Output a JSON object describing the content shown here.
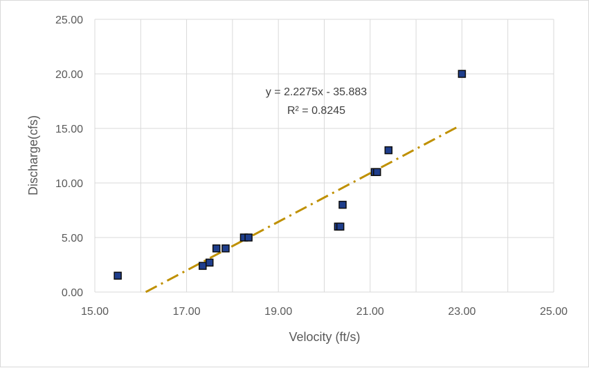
{
  "chart_data": {
    "type": "scatter",
    "title": "",
    "xlabel": "Velocity (ft/s)",
    "ylabel": "Discharge(cfs)",
    "xlim": [
      15,
      25
    ],
    "ylim": [
      0,
      25
    ],
    "x_ticks": [
      "15.00",
      "17.00",
      "19.00",
      "21.00",
      "23.00",
      "25.00"
    ],
    "y_ticks": [
      "0.00",
      "5.00",
      "10.00",
      "15.00",
      "20.00",
      "25.00"
    ],
    "x_gridlines": [
      15,
      16,
      17,
      18,
      19,
      20,
      21,
      22,
      23,
      24,
      25
    ],
    "y_gridlines": [
      0,
      5,
      10,
      15,
      20,
      25
    ],
    "grid": true,
    "legend": "none",
    "colors": {
      "marker_fill": "#1f3e8c",
      "marker_edge": "#0d0d0d",
      "trendline": "#bf9000",
      "grid": "#d9d9d9"
    },
    "series": [
      {
        "points": [
          {
            "x": 15.5,
            "y": 1.5
          },
          {
            "x": 17.35,
            "y": 2.4
          },
          {
            "x": 17.5,
            "y": 2.7
          },
          {
            "x": 17.65,
            "y": 4.0
          },
          {
            "x": 17.85,
            "y": 4.0
          },
          {
            "x": 18.25,
            "y": 5.0
          },
          {
            "x": 18.35,
            "y": 5.0
          },
          {
            "x": 20.3,
            "y": 6.0
          },
          {
            "x": 20.35,
            "y": 6.0
          },
          {
            "x": 20.4,
            "y": 8.0
          },
          {
            "x": 21.1,
            "y": 11.0
          },
          {
            "x": 21.15,
            "y": 11.0
          },
          {
            "x": 21.4,
            "y": 13.0
          },
          {
            "x": 23.0,
            "y": 20.0
          }
        ]
      }
    ],
    "trendline": {
      "type": "linear",
      "slope": 2.2275,
      "intercept": -35.883,
      "x_range": [
        16.11,
        22.95
      ],
      "equation_label": "y = 2.2275x - 35.883",
      "r2_label": "R² = 0.8245"
    }
  }
}
